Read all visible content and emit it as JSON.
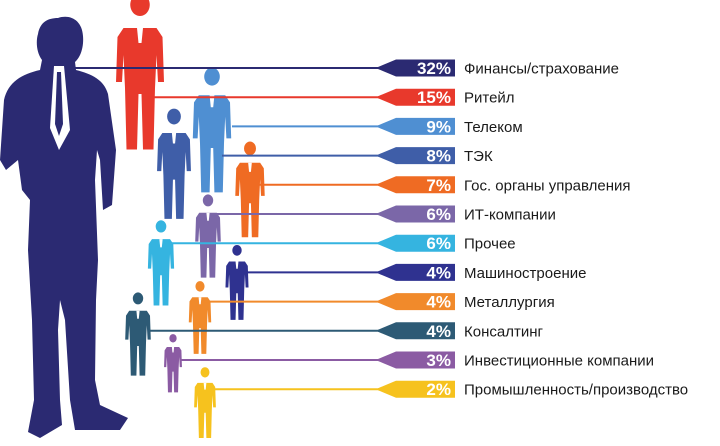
{
  "chart_data": {
    "type": "bar",
    "title": "",
    "categories": [
      "Финансы/страхование",
      "Ритейл",
      "Телеком",
      "ТЭК",
      "Гос. органы управления",
      "ИТ-компании",
      "Прочее",
      "Машиностроение",
      "Металлургия",
      "Консалтинг",
      "Инвестиционные компании",
      "Промышленность/производство"
    ],
    "values": [
      32,
      15,
      9,
      8,
      7,
      6,
      6,
      4,
      4,
      4,
      3,
      2
    ],
    "value_labels": [
      "32%",
      "15%",
      "9%",
      "8%",
      "7%",
      "6%",
      "6%",
      "4%",
      "4%",
      "4%",
      "3%",
      "2%"
    ],
    "colors": [
      "#2b2a72",
      "#e8392c",
      "#4f8fd2",
      "#3f5ea8",
      "#ef6b23",
      "#7b67a8",
      "#35b4e0",
      "#2f3290",
      "#f18a2b",
      "#2d5a75",
      "#8b5ba3",
      "#f6c21e"
    ],
    "figure_colors": [
      "#e8392c",
      "#4f8fd2",
      "#3f5ea8",
      "#ef6b23",
      "#7b67a8",
      "#35b4e0",
      "#2f3290",
      "#f18a2b",
      "#2d5a75",
      "#8b5ba3",
      "#f6c21e"
    ],
    "main_figure_color": "#2b2a72",
    "legend": "none",
    "grid": false
  }
}
